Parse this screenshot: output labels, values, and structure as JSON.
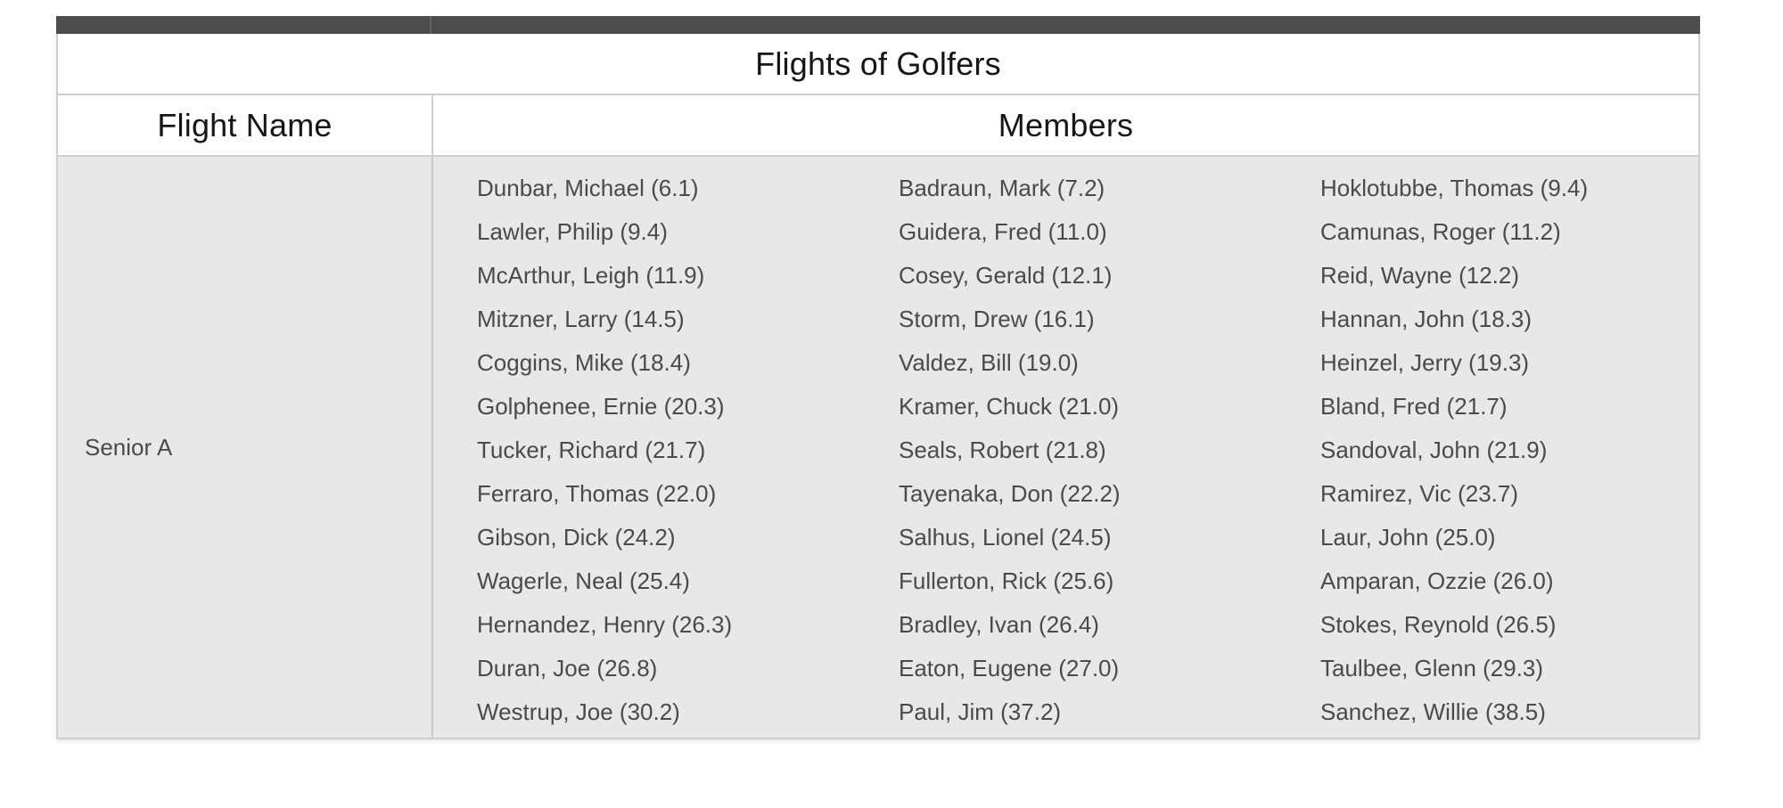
{
  "table": {
    "title": "Flights of Golfers",
    "columns": {
      "flight_name": "Flight Name",
      "members": "Members"
    },
    "flights": [
      {
        "name": "Senior A",
        "member_columns": [
          [
            "Dunbar, Michael (6.1)",
            "Lawler, Philip (9.4)",
            "McArthur, Leigh (11.9)",
            "Mitzner, Larry (14.5)",
            "Coggins, Mike (18.4)",
            "Golphenee, Ernie (20.3)",
            "Tucker, Richard (21.7)",
            "Ferraro, Thomas (22.0)",
            "Gibson, Dick (24.2)",
            "Wagerle, Neal (25.4)",
            "Hernandez, Henry (26.3)",
            "Duran, Joe (26.8)",
            "Westrup, Joe (30.2)"
          ],
          [
            "Badraun, Mark (7.2)",
            "Guidera, Fred (11.0)",
            "Cosey, Gerald (12.1)",
            "Storm, Drew (16.1)",
            "Valdez, Bill (19.0)",
            "Kramer, Chuck (21.0)",
            "Seals, Robert (21.8)",
            "Tayenaka, Don (22.2)",
            "Salhus, Lionel (24.5)",
            "Fullerton, Rick (25.6)",
            "Bradley, Ivan (26.4)",
            "Eaton, Eugene (27.0)",
            "Paul, Jim (37.2)"
          ],
          [
            "Hoklotubbe, Thomas (9.4)",
            "Camunas, Roger (11.2)",
            "Reid, Wayne (12.2)",
            "Hannan, John (18.3)",
            "Heinzel, Jerry (19.3)",
            "Bland, Fred (21.7)",
            "Sandoval, John (21.9)",
            "Ramirez, Vic (23.7)",
            "Laur, John (25.0)",
            "Amparan, Ozzie (26.0)",
            "Stokes, Reynold (26.5)",
            "Taulbee, Glenn (29.3)",
            "Sanchez, Willie (38.5)"
          ]
        ]
      }
    ]
  },
  "colors": {
    "top_bar": "#4d4d4d",
    "top_bar_divider": "#616161",
    "border": "#cfcfcf",
    "body_bg": "#e8e8e8",
    "header_text": "#161616",
    "body_text": "#4a4a4a",
    "page_bg": "#ffffff"
  }
}
